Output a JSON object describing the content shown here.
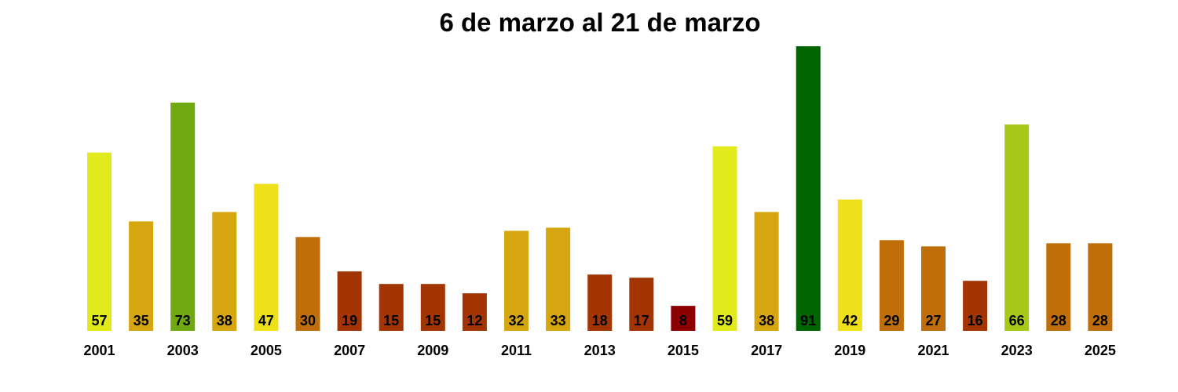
{
  "chart_data": {
    "type": "bar",
    "title": "6 de marzo al 21 de marzo",
    "xlabel": "",
    "ylabel": "",
    "grid": false,
    "legend": "none",
    "categories": [
      "2001",
      "2002",
      "2003",
      "2004",
      "2005",
      "2006",
      "2007",
      "2008",
      "2009",
      "2010",
      "2011",
      "2012",
      "2013",
      "2014",
      "2015",
      "2016",
      "2017",
      "2018",
      "2019",
      "2020",
      "2021",
      "2022",
      "2023",
      "2024",
      "2025"
    ],
    "values": [
      57,
      35,
      73,
      38,
      47,
      30,
      19,
      15,
      15,
      12,
      32,
      33,
      18,
      17,
      8,
      59,
      38,
      91,
      42,
      29,
      27,
      16,
      66,
      28,
      28
    ],
    "colors": [
      "#e1ea1a",
      "#d6a611",
      "#6fa811",
      "#d6a611",
      "#eee019",
      "#c06e0a",
      "#a23503",
      "#a23503",
      "#a23503",
      "#a23503",
      "#d6a611",
      "#d6a611",
      "#a23503",
      "#a23503",
      "#8c0000",
      "#e1ea1a",
      "#d6a611",
      "#006400",
      "#eee019",
      "#c06e0a",
      "#c06e0a",
      "#a23503",
      "#a8c81a",
      "#c06e0a",
      "#c06e0a"
    ],
    "tick_labels": [
      "2001",
      "2003",
      "2005",
      "2007",
      "2009",
      "2011",
      "2013",
      "2015",
      "2017",
      "2019",
      "2021",
      "2023",
      "2025"
    ],
    "ylim": [
      0,
      91
    ]
  }
}
